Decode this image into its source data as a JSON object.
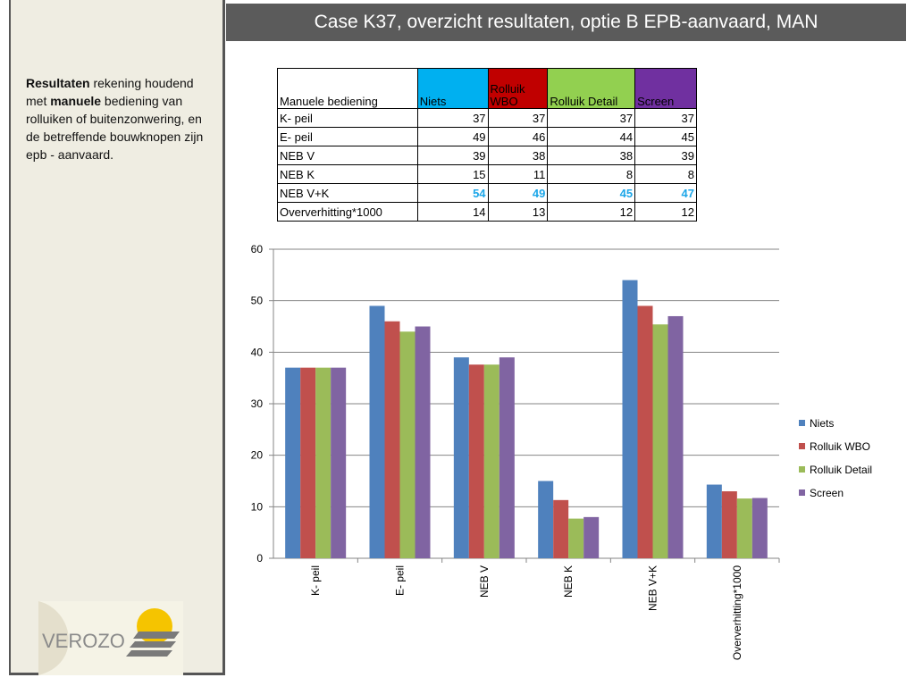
{
  "title": "Case K37, overzicht resultaten, optie B EPB-aanvaard, MAN",
  "sidebar": {
    "p1_bold": "Resultaten",
    "p2": " rekening houdend met ",
    "p3_bold": "manuele",
    "p4": " bediening van  rolluiken of buitenzonwering, en de betreffende bouwknopen zijn epb - aanvaard."
  },
  "logo_text": "VEROZO",
  "table": {
    "header": [
      "Manuele bediening",
      "Niets",
      "Rolluik WBO",
      "Rolluik Detail",
      "Screen"
    ],
    "header_colors": [
      "#ffffff",
      "#00b0f0",
      "#c00000",
      "#92d050",
      "#7030a0"
    ],
    "rows": [
      {
        "label": "K- peil",
        "values": [
          37,
          37,
          37,
          37
        ]
      },
      {
        "label": "E- peil",
        "values": [
          49,
          46,
          44,
          45
        ]
      },
      {
        "label": "NEB V",
        "values": [
          39,
          38,
          38,
          39
        ]
      },
      {
        "label": "NEB K",
        "values": [
          15,
          11,
          8,
          8
        ]
      },
      {
        "label": "NEB V+K",
        "values": [
          54,
          49,
          45,
          47
        ]
      },
      {
        "label": "Oververhitting*1000",
        "values": [
          14,
          13,
          12,
          12
        ]
      }
    ]
  },
  "chart_data": {
    "type": "bar",
    "categories": [
      "K- peil",
      "E- peil",
      "NEB V",
      "NEB K",
      "NEB V+K",
      "Oververhitting*1000"
    ],
    "series": [
      {
        "name": "Niets",
        "color": "#4f81bd",
        "values": [
          37,
          49,
          39,
          15,
          54,
          14.3
        ]
      },
      {
        "name": "Rolluik WBO",
        "color": "#c0504d",
        "values": [
          37,
          46,
          37.6,
          11.3,
          49,
          13
        ]
      },
      {
        "name": "Rolluik Detail",
        "color": "#9bbb59",
        "values": [
          37,
          44,
          37.6,
          7.7,
          45.4,
          11.6
        ]
      },
      {
        "name": "Screen",
        "color": "#8064a2",
        "values": [
          37,
          45,
          39,
          8,
          47,
          11.7
        ]
      }
    ],
    "yticks": [
      0,
      10,
      20,
      30,
      40,
      50,
      60
    ],
    "ylim": [
      0,
      60
    ],
    "grid": true,
    "legend": "right"
  }
}
